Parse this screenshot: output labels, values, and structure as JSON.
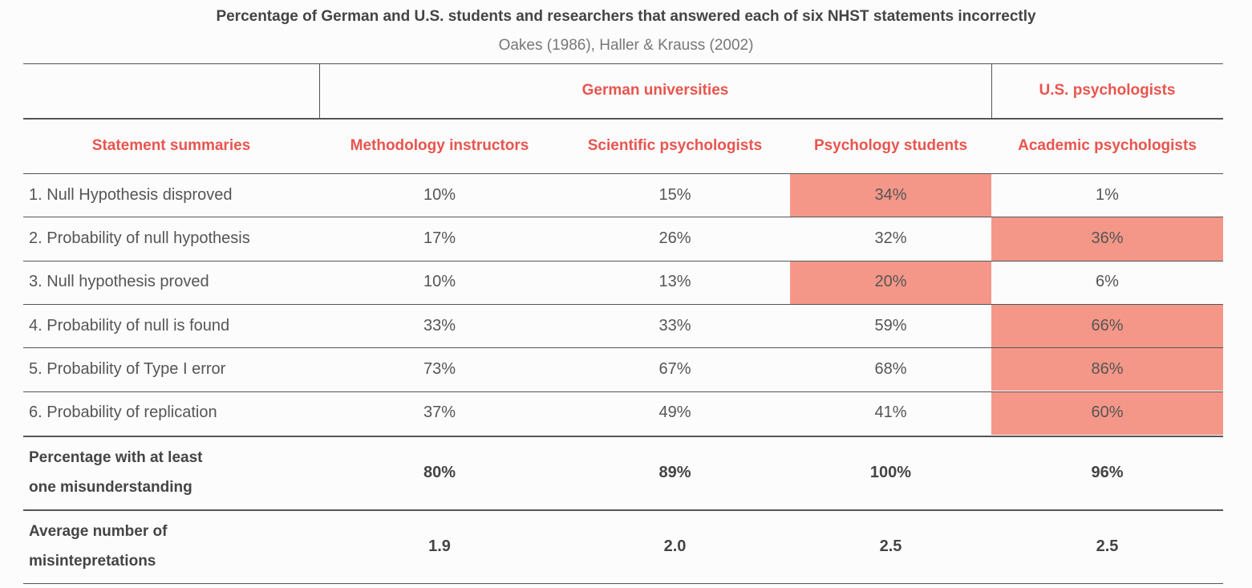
{
  "chart_data": {
    "type": "table",
    "title": "Percentage of German and U.S. students and researchers that answered each of six NHST statements incorrectly",
    "subtitle": "Oakes (1986), Haller & Krauss (2002)",
    "group_headers": [
      {
        "label": "German universities",
        "span": 3
      },
      {
        "label": "U.S. psychologists",
        "span": 1
      }
    ],
    "columns": [
      "Statement summaries",
      "Methodology instructors",
      "Scientific psychologists",
      "Psychology students",
      "Academic psychologists"
    ],
    "rows": [
      {
        "label": "1. Null Hypothesis disproved",
        "values": [
          "10%",
          "15%",
          "34%",
          "1%"
        ],
        "highlight": [
          false,
          false,
          true,
          false
        ]
      },
      {
        "label": "2. Probability of null hypothesis",
        "values": [
          "17%",
          "26%",
          "32%",
          "36%"
        ],
        "highlight": [
          false,
          false,
          false,
          true
        ]
      },
      {
        "label": "3. Null hypothesis proved",
        "values": [
          "10%",
          "13%",
          "20%",
          "6%"
        ],
        "highlight": [
          false,
          false,
          true,
          false
        ]
      },
      {
        "label": "4. Probability of null is found",
        "values": [
          "33%",
          "33%",
          "59%",
          "66%"
        ],
        "highlight": [
          false,
          false,
          false,
          true
        ]
      },
      {
        "label": "5. Probability of Type I error",
        "values": [
          "73%",
          "67%",
          "68%",
          "86%"
        ],
        "highlight": [
          false,
          false,
          false,
          true
        ]
      },
      {
        "label": "6. Probability of replication",
        "values": [
          "37%",
          "49%",
          "41%",
          "60%"
        ],
        "highlight": [
          false,
          false,
          false,
          true
        ]
      }
    ],
    "summary_rows": [
      {
        "label_lines": [
          "Percentage with at least",
          "one misunderstanding"
        ],
        "values": [
          "80%",
          "89%",
          "100%",
          "96%"
        ]
      },
      {
        "label_lines": [
          "Average number of",
          "misintepretations"
        ],
        "values": [
          "1.9",
          "2.0",
          "2.5",
          "2.5"
        ]
      }
    ],
    "colors": {
      "header_text": "#e8554e",
      "highlight_fill": "#f59788"
    }
  }
}
